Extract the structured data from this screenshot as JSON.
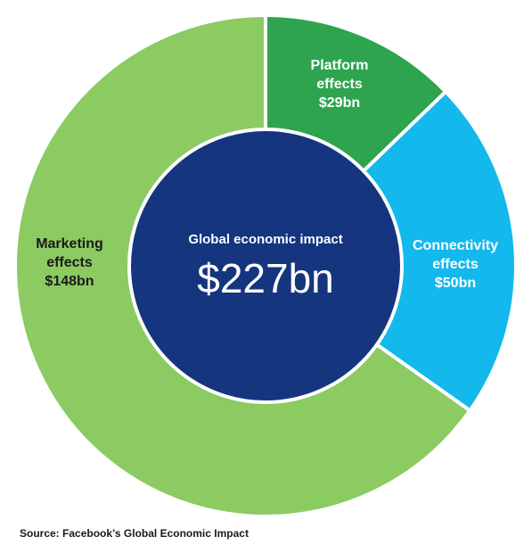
{
  "chart_data": {
    "type": "pie",
    "center": {
      "label": "Global economic impact",
      "value": "$227bn"
    },
    "total": 227,
    "unit": "$bn",
    "slices": [
      {
        "key": "platform",
        "label_lines": [
          "Platform",
          "effects",
          "$29bn"
        ],
        "value": 29,
        "color": "#2ea44f"
      },
      {
        "key": "connectivity",
        "label_lines": [
          "Connectivity",
          "effects",
          "$50bn"
        ],
        "value": 50,
        "color": "#13b8ed"
      },
      {
        "key": "marketing",
        "label_lines": [
          "Marketing",
          "effects",
          "$148bn"
        ],
        "value": 148,
        "color": "#8bcb62"
      }
    ],
    "center_color": "#15357f",
    "source": "Source: Facebook’s Global Economic Impact"
  }
}
